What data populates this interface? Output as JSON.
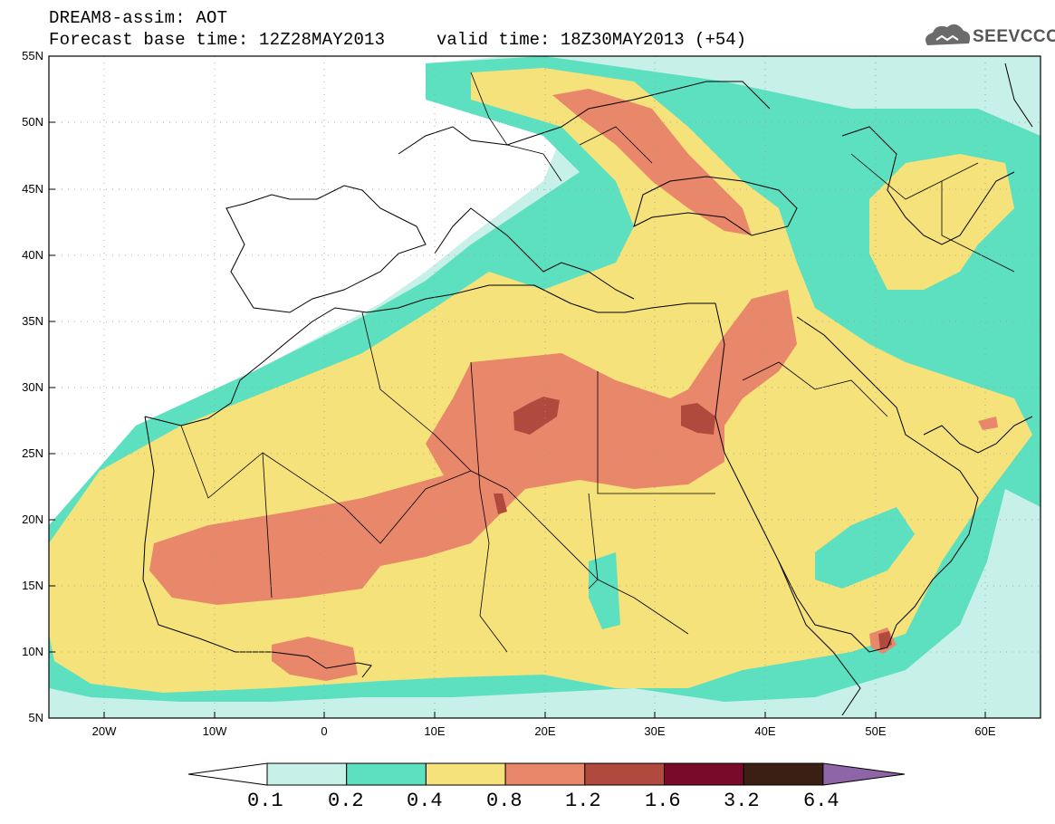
{
  "header": {
    "title": "DREAM8-assim: AOT",
    "base_time": "Forecast base time: 12Z28MAY2013",
    "valid_time": "valid time: 18Z30MAY2013 (+54)"
  },
  "logo": {
    "text": "SEEVCCC",
    "icon": "cloud-icon"
  },
  "axes": {
    "lon_range": [
      -25,
      65
    ],
    "lat_range": [
      5,
      55
    ],
    "lat_ticks": [
      "5N",
      "10N",
      "15N",
      "20N",
      "25N",
      "30N",
      "35N",
      "40N",
      "45N",
      "50N",
      "55N"
    ],
    "lon_ticks": [
      "20W",
      "10W",
      "0",
      "10E",
      "20E",
      "30E",
      "40E",
      "50E",
      "60E"
    ],
    "grid": "dotted"
  },
  "colorbar": {
    "labels": [
      "0.1",
      "0.2",
      "0.4",
      "0.8",
      "1.2",
      "1.6",
      "3.2",
      "6.4"
    ],
    "colors": [
      "#c6f0e8",
      "#5de0c0",
      "#f6e27a",
      "#e8876a",
      "#b14a3e",
      "#7a0a2a",
      "#3b1f14",
      "#8e66a8"
    ]
  },
  "layers": {
    "background": "#ffffff",
    "coast": "#000000"
  }
}
